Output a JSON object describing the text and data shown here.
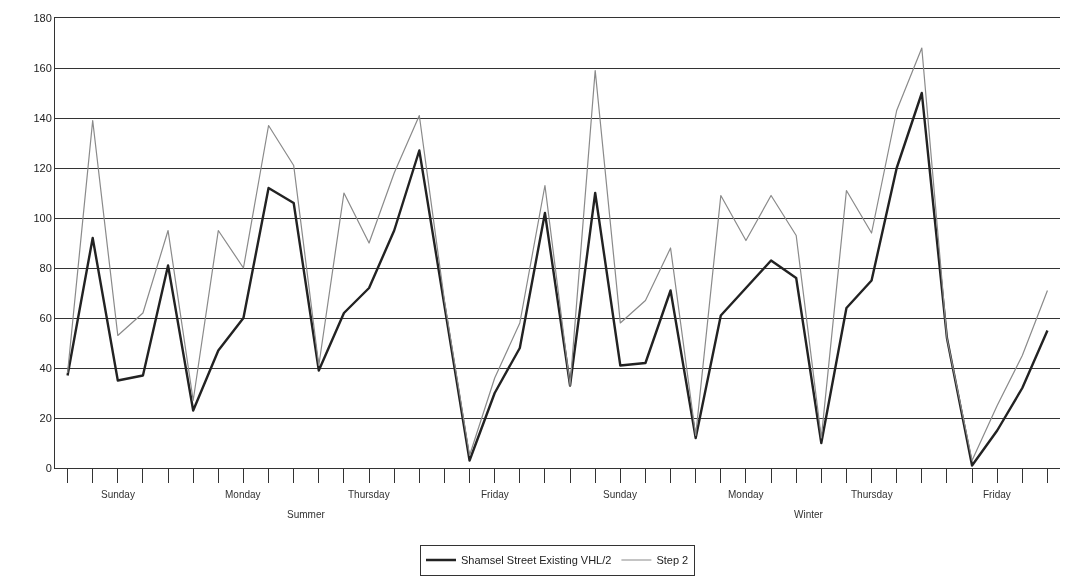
{
  "chart_data": {
    "type": "line",
    "categories": [
      null,
      null,
      null,
      null,
      null,
      null,
      null,
      null,
      null,
      null,
      null,
      null,
      null,
      null,
      null,
      null,
      null,
      null,
      null,
      null,
      null,
      null,
      null,
      null,
      null,
      null,
      null,
      null,
      null,
      null,
      null,
      null,
      null,
      null,
      null,
      null,
      null,
      null,
      null,
      null
    ],
    "series": [
      {
        "name": "Shamsel Street Existing VHL/2",
        "color": "#222222",
        "values": [
          37,
          92,
          35,
          37,
          81,
          23,
          47,
          60,
          112,
          106,
          39,
          62,
          72,
          95,
          127,
          65,
          3,
          30,
          48,
          102,
          33,
          110,
          41,
          42,
          71,
          12,
          61,
          72,
          83,
          76,
          10,
          64,
          75,
          120,
          150,
          52,
          1,
          15,
          32,
          55
        ]
      },
      {
        "name": "Step 2",
        "color": "#8a8a8a",
        "values": [
          38,
          139,
          53,
          62,
          95,
          27,
          95,
          80,
          137,
          121,
          41,
          110,
          90,
          118,
          141,
          67,
          5,
          36,
          58,
          113,
          33,
          159,
          58,
          67,
          88,
          13,
          109,
          91,
          109,
          93,
          12,
          111,
          94,
          143,
          168,
          52,
          3,
          25,
          45,
          71
        ]
      }
    ],
    "ylim": [
      0,
      180
    ],
    "yticks": [
      0,
      20,
      40,
      60,
      80,
      100,
      120,
      140,
      160,
      180
    ],
    "grid": "y",
    "legend": "bottom",
    "marker": "none",
    "line_style": "solid",
    "annotations": [
      "Sunday",
      "Monday",
      "Thursday",
      "Friday",
      "Sunday",
      "Monday",
      "Thursday",
      "Friday",
      "Summer",
      "Winter"
    ]
  }
}
